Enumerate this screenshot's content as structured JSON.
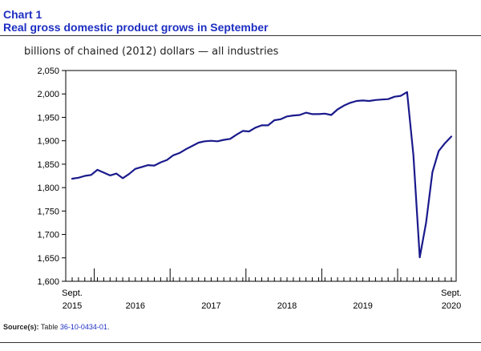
{
  "header": {
    "chart_number": "Chart 1",
    "title": "Real gross domestic product grows in September"
  },
  "subtitle": "billions of chained (2012) dollars — all industries",
  "source": {
    "label": "Source(s):",
    "prefix": "Table ",
    "link_text": "36-10-0434-01",
    "suffix": "."
  },
  "chart_data": {
    "type": "line",
    "title": "Real gross domestic product grows in September",
    "ylabel": "billions of chained (2012) dollars — all industries",
    "xlabel": "",
    "ylim": [
      1600,
      2050
    ],
    "yticks": [
      "1,600",
      "1,650",
      "1,700",
      "1,750",
      "1,800",
      "1,850",
      "1,900",
      "1,950",
      "2,000",
      "2,050"
    ],
    "ytick_values": [
      1600,
      1650,
      1700,
      1750,
      1800,
      1850,
      1900,
      1950,
      2000,
      2050
    ],
    "grid": false,
    "x_start": "Sept. 2015",
    "x_end": "Sept. 2020",
    "months": 61,
    "year_boundaries": [
      4,
      16,
      28,
      40,
      52
    ],
    "xtick_labels": [
      {
        "index": 0,
        "line1": "Sept.",
        "line2": "2015"
      },
      {
        "index": 10,
        "line1": "",
        "line2": "2016"
      },
      {
        "index": 22,
        "line1": "",
        "line2": "2017"
      },
      {
        "index": 34,
        "line1": "",
        "line2": "2018"
      },
      {
        "index": 46,
        "line1": "",
        "line2": "2019"
      },
      {
        "index": 60,
        "line1": "Sept.",
        "line2": "2020"
      }
    ],
    "series": [
      {
        "name": "All industries",
        "color": "#1a1a8c",
        "values": [
          1819,
          1821,
          1825,
          1827,
          1838,
          1832,
          1826,
          1830,
          1820,
          1829,
          1840,
          1844,
          1848,
          1847,
          1854,
          1859,
          1869,
          1874,
          1882,
          1889,
          1896,
          1899,
          1900,
          1899,
          1902,
          1904,
          1913,
          1921,
          1920,
          1928,
          1933,
          1933,
          1944,
          1946,
          1952,
          1954,
          1955,
          1960,
          1957,
          1957,
          1958,
          1955,
          1967,
          1975,
          1981,
          1985,
          1986,
          1985,
          1987,
          1988,
          1989,
          1994,
          1996,
          2004,
          1869,
          1651,
          1725,
          1833,
          1878,
          1895,
          1909
        ]
      }
    ]
  }
}
